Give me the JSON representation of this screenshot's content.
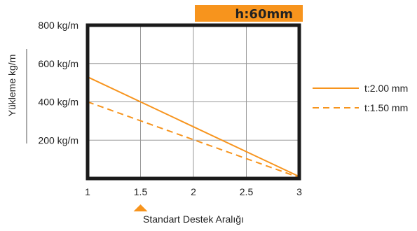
{
  "chart_data": {
    "type": "line",
    "badge": "h:60mm",
    "ylabel": "Yükleme kg/m",
    "xlabel": "Standart Destek Aralığı",
    "xlim": [
      1,
      3
    ],
    "ylim": [
      0,
      800
    ],
    "x_ticks": [
      "1",
      "1.5",
      "2",
      "2.5",
      "3"
    ],
    "y_ticks": [
      "200 kg/m",
      "400 kg/m",
      "600 kg/m",
      "800 kg/m"
    ],
    "y_tick_values": [
      200,
      400,
      600,
      800
    ],
    "grid": true,
    "legend_position": "right",
    "marker_x": 1.5,
    "colors": {
      "accent": "#F7941D",
      "frame": "#1a1a1a",
      "grid": "#999999"
    },
    "series": [
      {
        "name": "t:2.00 mm",
        "style": "solid",
        "x": [
          1,
          3
        ],
        "values": [
          530,
          10
        ]
      },
      {
        "name": "t:1.50 mm",
        "style": "dashed",
        "x": [
          1,
          3
        ],
        "values": [
          400,
          5
        ]
      }
    ]
  }
}
